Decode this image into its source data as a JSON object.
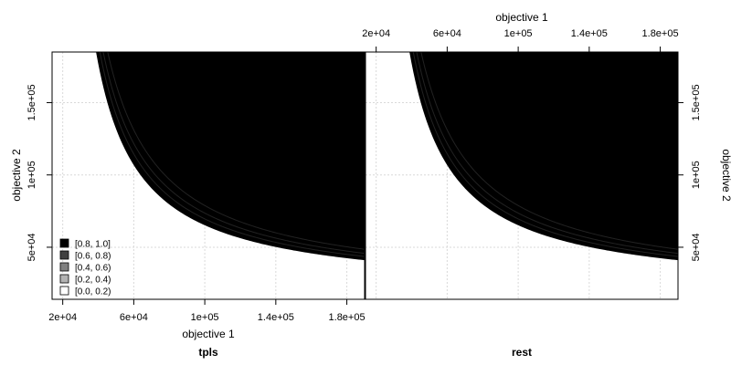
{
  "chart_data": {
    "type": "area",
    "subtype": "empirical-attainment-function-diff",
    "panels": [
      {
        "name": "tpls",
        "title": "tpls"
      },
      {
        "name": "rest",
        "title": "rest"
      }
    ],
    "xlabel": "objective 1",
    "ylabel": "objective 2",
    "xlim": [
      14000,
      190000
    ],
    "ylim": [
      14000,
      185000
    ],
    "x_ticks": [
      {
        "value": 20000,
        "label": "2e+04"
      },
      {
        "value": 60000,
        "label": "6e+04"
      },
      {
        "value": 100000,
        "label": "1e+05"
      },
      {
        "value": 140000,
        "label": "1.4e+05"
      },
      {
        "value": 180000,
        "label": "1.8e+05"
      }
    ],
    "y_ticks": [
      {
        "value": 50000,
        "label": "5e+04"
      },
      {
        "value": 100000,
        "label": "1e+05"
      },
      {
        "value": 150000,
        "label": "1.5e+05"
      }
    ],
    "legend": {
      "position": "bottom-left",
      "entries": [
        {
          "label": "[0.8, 1.0]",
          "color": "#000000"
        },
        {
          "label": "[0.6, 0.8)",
          "color": "#404040"
        },
        {
          "label": "[0.4, 0.6)",
          "color": "#808080"
        },
        {
          "label": "[0.2, 0.4)",
          "color": "#b3b3b3"
        },
        {
          "label": "[0.0, 0.2)",
          "color": "#ffffff"
        }
      ]
    },
    "fill_color": "#000000",
    "grid": true,
    "attainment_curves": [
      {
        "k": 4000000000.0,
        "x0": 15000,
        "y0": 18500
      },
      {
        "k": 4300000000.0,
        "x0": 15000,
        "y0": 19000
      },
      {
        "k": 4600000000.0,
        "x0": 15000,
        "y0": 19500
      },
      {
        "k": 5000000000.0,
        "x0": 15000,
        "y0": 20000
      }
    ]
  }
}
